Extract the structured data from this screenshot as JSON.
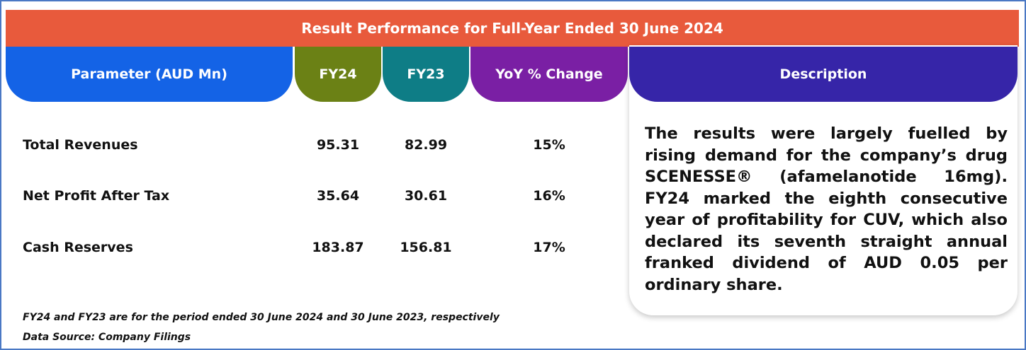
{
  "title": "Result Performance for Full-Year Ended 30 June 2024",
  "columns": {
    "parameter": "Parameter (AUD Mn)",
    "fy24": "FY24",
    "fy23": "FY23",
    "yoy": "YoY % Change",
    "description": "Description"
  },
  "rows": [
    {
      "label": "Total Revenues",
      "fy24": "95.31",
      "fy23": "82.99",
      "yoy": "15%"
    },
    {
      "label": "Net Profit After Tax",
      "fy24": "35.64",
      "fy23": "30.61",
      "yoy": "16%"
    },
    {
      "label": "Cash Reserves",
      "fy24": "183.87",
      "fy23": "156.81",
      "yoy": "17%"
    }
  ],
  "description": "The results were largely fuelled by rising demand for the company’s drug SCENESSE® (afamelanotide 16mg). FY24 marked the eighth consecutive year of profitability for CUV, which also declared its seventh straight annual franked dividend of AUD 0.05 per ordinary share.",
  "notes": {
    "period": "FY24 and FY23 are for the period ended 30 June 2024 and 30 June 2023, respectively",
    "source": "Data Source: Company Filings"
  },
  "colors": {
    "title_bar": "#e85a3c",
    "parameter_header": "#1463e6",
    "fy24_header": "#6b8115",
    "fy23_header": "#0e7d86",
    "yoy_header": "#7a1fa4",
    "description_header": "#3625a8",
    "frame_border": "#4a78c4"
  }
}
